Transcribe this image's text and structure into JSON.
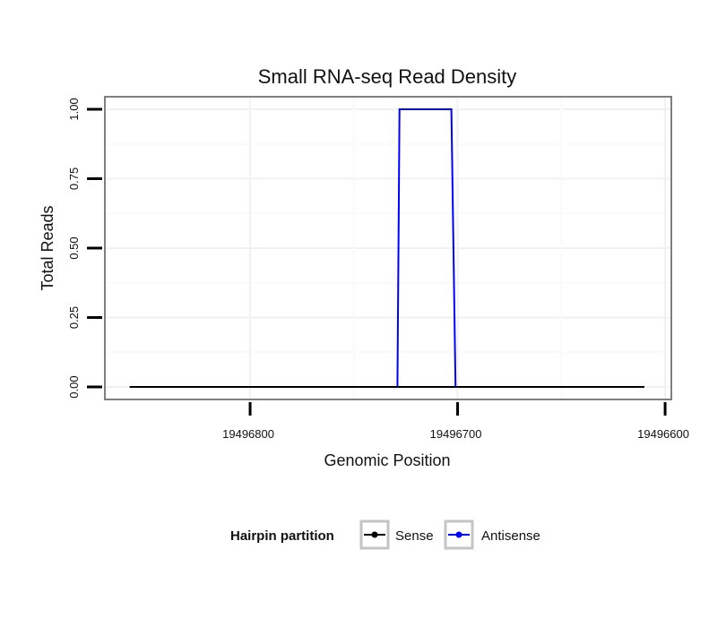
{
  "chart_data": {
    "type": "line",
    "title": "Small RNA-seq Read Density",
    "xlabel": "Genomic Position",
    "ylabel": "Total Reads",
    "x_reversed": true,
    "xlim": [
      19496870,
      19496597
    ],
    "ylim": [
      -0.045,
      1.045
    ],
    "x_ticks": [
      19496800,
      19496700,
      19496600
    ],
    "x_tick_labels": [
      "19496800",
      "19496700",
      "19496600"
    ],
    "y_ticks": [
      0,
      0.25,
      0.5,
      0.75,
      1
    ],
    "y_tick_labels": [
      "0.00",
      "0.25",
      "0.50",
      "0.75",
      "1.00"
    ],
    "grid": true,
    "legend": {
      "title": "Hairpin partition",
      "position": "bottom"
    },
    "series": [
      {
        "name": "Sense",
        "color": "#000000",
        "x": [
          19496858,
          19496610
        ],
        "y": [
          0,
          0
        ]
      },
      {
        "name": "Antisense",
        "color": "#0000ff",
        "x": [
          19496858,
          19496729,
          19496728,
          19496703,
          19496701,
          19496610
        ],
        "y": [
          0,
          0,
          1,
          1,
          0,
          0
        ]
      }
    ]
  }
}
